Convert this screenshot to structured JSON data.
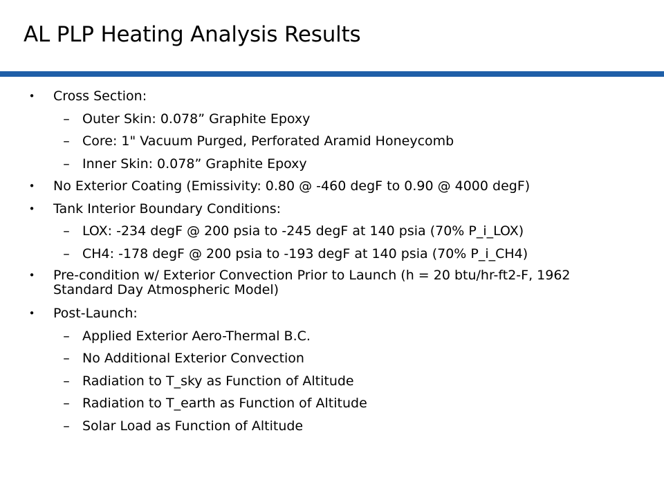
{
  "slide": {
    "title": "AL PLP Heating Analysis Results",
    "accent_color": "#1f5fa8",
    "bullet_char": "•",
    "dash_char": "–",
    "items": [
      {
        "level": 1,
        "text": "Cross Section:"
      },
      {
        "level": 2,
        "text": "Outer Skin: 0.078” Graphite Epoxy"
      },
      {
        "level": 2,
        "text": "Core: 1\" Vacuum Purged, Perforated Aramid Honeycomb"
      },
      {
        "level": 2,
        "text": "Inner Skin: 0.078” Graphite Epoxy"
      },
      {
        "level": 1,
        "text": "No Exterior Coating (Emissivity: 0.80 @ -460 degF to 0.90 @ 4000 degF)"
      },
      {
        "level": 1,
        "text": "Tank Interior Boundary Conditions:"
      },
      {
        "level": 2,
        "text": "LOX: -234 degF @ 200 psia to -245 degF at 140 psia (70% P_i_LOX)"
      },
      {
        "level": 2,
        "text": "CH4: -178 degF @ 200 psia to -193 degF at 140 psia (70% P_i_CH4)"
      },
      {
        "level": 1,
        "text": "Pre-condition w/ Exterior Convection Prior to Launch (h = 20 btu/hr-ft2-F, 1962 Standard Day Atmospheric Model)"
      },
      {
        "level": 1,
        "text": "Post-Launch:"
      },
      {
        "level": 2,
        "text": "Applied Exterior Aero-Thermal B.C."
      },
      {
        "level": 2,
        "text": "No Additional Exterior Convection"
      },
      {
        "level": 2,
        "text": "Radiation to T_sky as Function of Altitude"
      },
      {
        "level": 2,
        "text": "Radiation to T_earth as Function of Altitude"
      },
      {
        "level": 2,
        "text": "Solar Load as Function of Altitude"
      }
    ]
  }
}
